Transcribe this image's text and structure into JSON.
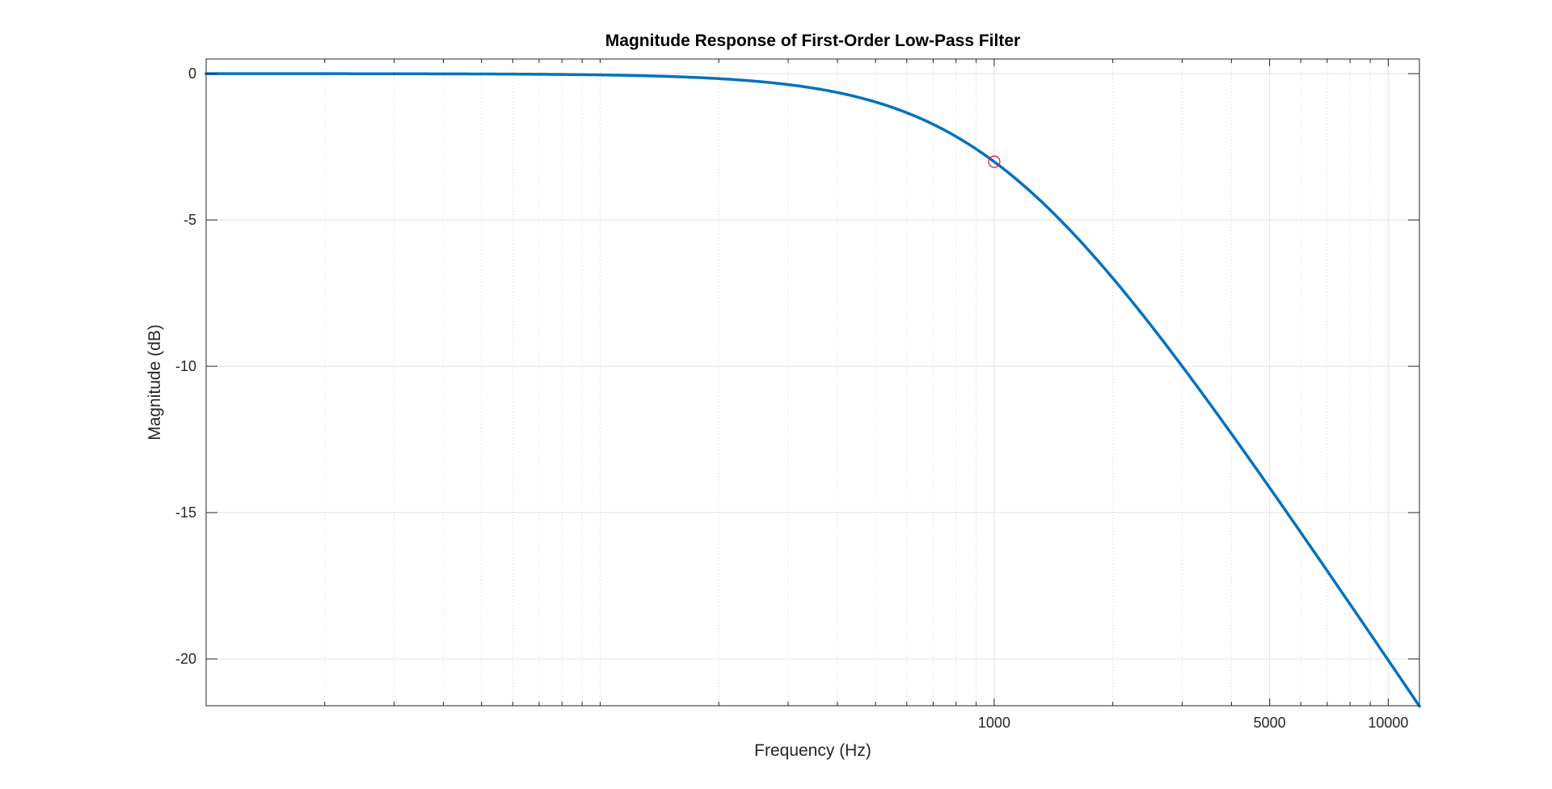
{
  "colors": {
    "background": "#ffffff",
    "axes": "#262626",
    "major_grid": "#e1e1e1",
    "minor_grid": "#d4d4d4",
    "series": "#0072bd",
    "marker": "#d62728"
  },
  "chart_data": {
    "type": "line",
    "title": "Magnitude Response of First-Order Low-Pass Filter",
    "xlabel": "Frequency (Hz)",
    "ylabel": "Magnitude (dB)",
    "xscale": "log",
    "xlim": [
      10,
      12000
    ],
    "ylim": [
      -21.6,
      0.5
    ],
    "grid": true,
    "minor_grid": true,
    "legend": "none",
    "x_ticks": [
      1000,
      5000,
      10000
    ],
    "x_tick_labels": [
      "1000",
      "5000",
      "10000"
    ],
    "y_ticks": [
      0,
      -5,
      -10,
      -15,
      -20
    ],
    "y_tick_labels": [
      "0",
      "-5",
      "-10",
      "-15",
      "-20"
    ],
    "series": [
      {
        "model": "first-order low-pass, cutoff 1000 Hz",
        "x": [
          10,
          20,
          50,
          100,
          200,
          300,
          500,
          700,
          1000,
          1500,
          2000,
          3000,
          5000,
          7000,
          10000,
          12000
        ],
        "y": [
          0,
          -0.002,
          -0.011,
          -0.043,
          -0.17,
          -0.37,
          -0.97,
          -1.74,
          -3.01,
          -5.12,
          -6.99,
          -10.0,
          -14.15,
          -16.99,
          -20.04,
          -21.6
        ]
      }
    ],
    "markers": [
      {
        "shape": "circle",
        "x": 1000,
        "y": -3.01
      }
    ]
  }
}
